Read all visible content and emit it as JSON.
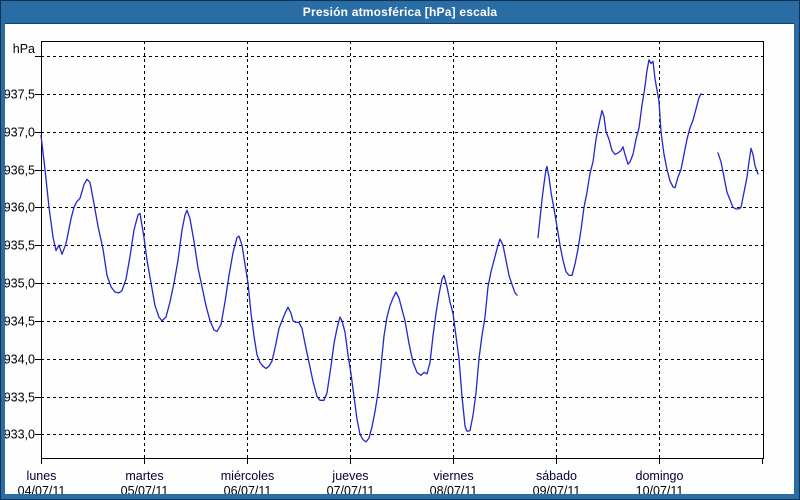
{
  "window": {
    "title": "Presión atmosférica [hPa] escala"
  },
  "chart": {
    "y_axis_unit": "hPa",
    "colors": {
      "titlebar": "#2a6da5",
      "frame": "#2a6da5",
      "line": "#2427c9",
      "grid": "#000000",
      "border": "#000000",
      "day_label": "#000033",
      "date_label": "#000000",
      "tick_label": "#000000",
      "title_text": "#ffffff",
      "background": "#fdfefd"
    }
  },
  "chart_data": {
    "type": "line",
    "title": "Presión atmosférica [hPa] escala",
    "ylabel": "hPa",
    "xlabel": "",
    "ylim": [
      932.7,
      938.2
    ],
    "grid": "dashed horizontal and vertical",
    "legend": "none",
    "y_ticks": [
      {
        "value": 938.0,
        "label": ""
      },
      {
        "value": 937.5,
        "label": "937,5"
      },
      {
        "value": 937.0,
        "label": "937,0"
      },
      {
        "value": 936.5,
        "label": "936,5"
      },
      {
        "value": 936.0,
        "label": "936,0"
      },
      {
        "value": 935.5,
        "label": "935,5"
      },
      {
        "value": 935.0,
        "label": "935,0"
      },
      {
        "value": 934.5,
        "label": "934,5"
      },
      {
        "value": 934.0,
        "label": "934,0"
      },
      {
        "value": 933.5,
        "label": "933,5"
      },
      {
        "value": 933.0,
        "label": "933,0"
      }
    ],
    "x_days": [
      {
        "name": "lunes",
        "date": "04/07/11"
      },
      {
        "name": "martes",
        "date": "05/07/11"
      },
      {
        "name": "miércoles",
        "date": "06/07/11"
      },
      {
        "name": "jueves",
        "date": "07/07/11"
      },
      {
        "name": "viernes",
        "date": "08/07/11"
      },
      {
        "name": "sábado",
        "date": "09/07/11"
      },
      {
        "name": "domingo",
        "date": "10/07/11"
      }
    ],
    "x_unit": "days since 04/07/11 00:00",
    "x_span_days": 7,
    "series": [
      {
        "name": "Presión atmosférica [hPa]",
        "segments": [
          [
            [
              0.0,
              936.95
            ],
            [
              0.039,
              936.5
            ],
            [
              0.078,
              936.0
            ],
            [
              0.117,
              935.6
            ],
            [
              0.146,
              935.43
            ],
            [
              0.175,
              935.5
            ],
            [
              0.204,
              935.38
            ],
            [
              0.243,
              935.52
            ],
            [
              0.291,
              935.85
            ],
            [
              0.32,
              936.0
            ],
            [
              0.35,
              936.08
            ],
            [
              0.379,
              936.12
            ],
            [
              0.417,
              936.3
            ],
            [
              0.447,
              936.37
            ],
            [
              0.476,
              936.33
            ],
            [
              0.515,
              936.05
            ],
            [
              0.553,
              935.75
            ],
            [
              0.602,
              935.45
            ],
            [
              0.641,
              935.1
            ],
            [
              0.68,
              934.95
            ],
            [
              0.718,
              934.88
            ],
            [
              0.757,
              934.87
            ],
            [
              0.786,
              934.9
            ],
            [
              0.825,
              935.05
            ],
            [
              0.864,
              935.35
            ],
            [
              0.903,
              935.7
            ],
            [
              0.942,
              935.9
            ],
            [
              0.961,
              935.92
            ],
            [
              1.0,
              935.6
            ],
            [
              1.029,
              935.3
            ],
            [
              1.068,
              935.0
            ],
            [
              1.107,
              934.7
            ],
            [
              1.146,
              934.55
            ],
            [
              1.175,
              934.5
            ],
            [
              1.214,
              934.55
            ],
            [
              1.252,
              934.75
            ],
            [
              1.291,
              935.0
            ],
            [
              1.33,
              935.3
            ],
            [
              1.369,
              935.7
            ],
            [
              1.398,
              935.9
            ],
            [
              1.417,
              935.96
            ],
            [
              1.447,
              935.85
            ],
            [
              1.485,
              935.55
            ],
            [
              1.524,
              935.2
            ],
            [
              1.563,
              934.95
            ],
            [
              1.602,
              934.7
            ],
            [
              1.641,
              934.5
            ],
            [
              1.68,
              934.38
            ],
            [
              1.709,
              934.36
            ],
            [
              1.748,
              934.45
            ],
            [
              1.786,
              934.75
            ],
            [
              1.825,
              935.1
            ],
            [
              1.864,
              935.4
            ],
            [
              1.903,
              935.6
            ],
            [
              1.922,
              935.62
            ],
            [
              1.951,
              935.5
            ],
            [
              1.981,
              935.25
            ],
            [
              2.01,
              935.0
            ],
            [
              2.039,
              934.6
            ],
            [
              2.068,
              934.3
            ],
            [
              2.097,
              934.05
            ],
            [
              2.126,
              933.95
            ],
            [
              2.155,
              933.9
            ],
            [
              2.184,
              933.87
            ],
            [
              2.214,
              933.9
            ],
            [
              2.243,
              933.97
            ],
            [
              2.282,
              934.2
            ],
            [
              2.311,
              934.4
            ],
            [
              2.34,
              934.5
            ],
            [
              2.369,
              934.6
            ],
            [
              2.398,
              934.68
            ],
            [
              2.427,
              934.6
            ],
            [
              2.447,
              934.5
            ],
            [
              2.476,
              934.48
            ],
            [
              2.505,
              934.48
            ],
            [
              2.534,
              934.4
            ],
            [
              2.563,
              934.2
            ],
            [
              2.602,
              933.95
            ],
            [
              2.641,
              933.7
            ],
            [
              2.68,
              933.5
            ],
            [
              2.709,
              933.45
            ],
            [
              2.748,
              933.45
            ],
            [
              2.777,
              933.55
            ],
            [
              2.816,
              933.9
            ],
            [
              2.845,
              934.2
            ],
            [
              2.874,
              934.4
            ],
            [
              2.903,
              934.55
            ],
            [
              2.922,
              934.5
            ],
            [
              2.951,
              934.35
            ],
            [
              2.981,
              934.05
            ],
            [
              3.01,
              933.8
            ],
            [
              3.039,
              933.5
            ],
            [
              3.068,
              933.2
            ],
            [
              3.097,
              933.0
            ],
            [
              3.126,
              932.93
            ],
            [
              3.155,
              932.9
            ],
            [
              3.184,
              932.95
            ],
            [
              3.214,
              933.1
            ],
            [
              3.243,
              933.3
            ],
            [
              3.272,
              933.55
            ],
            [
              3.301,
              933.9
            ],
            [
              3.33,
              934.3
            ],
            [
              3.359,
              934.55
            ],
            [
              3.388,
              934.7
            ],
            [
              3.417,
              934.8
            ],
            [
              3.447,
              934.88
            ],
            [
              3.476,
              934.8
            ],
            [
              3.505,
              934.65
            ],
            [
              3.534,
              934.5
            ],
            [
              3.573,
              934.2
            ],
            [
              3.612,
              933.95
            ],
            [
              3.65,
              933.82
            ],
            [
              3.689,
              933.78
            ],
            [
              3.718,
              933.82
            ],
            [
              3.748,
              933.8
            ],
            [
              3.777,
              933.95
            ],
            [
              3.806,
              934.3
            ],
            [
              3.835,
              934.6
            ],
            [
              3.864,
              934.85
            ],
            [
              3.893,
              935.05
            ],
            [
              3.913,
              935.1
            ],
            [
              3.942,
              934.95
            ],
            [
              3.971,
              934.75
            ],
            [
              4.0,
              934.6
            ],
            [
              4.029,
              934.3
            ],
            [
              4.058,
              934.0
            ],
            [
              4.087,
              933.5
            ],
            [
              4.117,
              933.1
            ],
            [
              4.136,
              933.04
            ],
            [
              4.165,
              933.05
            ],
            [
              4.194,
              933.25
            ],
            [
              4.223,
              933.55
            ],
            [
              4.252,
              934.0
            ],
            [
              4.281,
              934.3
            ],
            [
              4.311,
              934.55
            ],
            [
              4.34,
              934.95
            ],
            [
              4.369,
              935.15
            ],
            [
              4.408,
              935.35
            ],
            [
              4.437,
              935.5
            ],
            [
              4.456,
              935.58
            ],
            [
              4.485,
              935.5
            ],
            [
              4.515,
              935.3
            ],
            [
              4.544,
              935.1
            ],
            [
              4.573,
              934.98
            ],
            [
              4.602,
              934.87
            ],
            [
              4.621,
              934.84
            ]
          ],
          [
            [
              4.825,
              935.6
            ],
            [
              4.845,
              935.85
            ],
            [
              4.864,
              936.1
            ],
            [
              4.883,
              936.3
            ],
            [
              4.903,
              936.5
            ],
            [
              4.913,
              936.54
            ],
            [
              4.932,
              936.4
            ],
            [
              4.951,
              936.2
            ],
            [
              4.981,
              935.98
            ],
            [
              5.01,
              935.75
            ],
            [
              5.039,
              935.5
            ],
            [
              5.068,
              935.3
            ],
            [
              5.097,
              935.15
            ],
            [
              5.126,
              935.1
            ],
            [
              5.155,
              935.1
            ],
            [
              5.184,
              935.25
            ],
            [
              5.214,
              935.45
            ],
            [
              5.243,
              935.7
            ],
            [
              5.272,
              936.0
            ],
            [
              5.301,
              936.2
            ],
            [
              5.33,
              936.45
            ],
            [
              5.359,
              936.6
            ],
            [
              5.388,
              936.9
            ],
            [
              5.417,
              937.1
            ],
            [
              5.447,
              937.28
            ],
            [
              5.466,
              937.2
            ],
            [
              5.485,
              937.0
            ],
            [
              5.515,
              936.9
            ],
            [
              5.544,
              936.75
            ],
            [
              5.573,
              936.7
            ],
            [
              5.602,
              936.72
            ],
            [
              5.631,
              936.75
            ],
            [
              5.65,
              936.8
            ],
            [
              5.67,
              936.7
            ],
            [
              5.699,
              936.57
            ],
            [
              5.718,
              936.6
            ],
            [
              5.748,
              936.7
            ],
            [
              5.777,
              936.9
            ],
            [
              5.806,
              937.05
            ],
            [
              5.835,
              937.35
            ],
            [
              5.864,
              937.6
            ],
            [
              5.883,
              937.8
            ],
            [
              5.903,
              937.95
            ],
            [
              5.922,
              937.9
            ],
            [
              5.942,
              937.93
            ],
            [
              5.961,
              937.7
            ],
            [
              5.981,
              937.55
            ],
            [
              6.0,
              937.4
            ],
            [
              6.019,
              937.0
            ],
            [
              6.049,
              936.7
            ],
            [
              6.078,
              936.5
            ],
            [
              6.107,
              936.35
            ],
            [
              6.136,
              936.27
            ],
            [
              6.155,
              936.26
            ],
            [
              6.184,
              936.4
            ],
            [
              6.214,
              936.5
            ],
            [
              6.243,
              936.7
            ],
            [
              6.272,
              936.9
            ],
            [
              6.301,
              937.05
            ],
            [
              6.33,
              937.15
            ],
            [
              6.359,
              937.3
            ],
            [
              6.388,
              937.45
            ],
            [
              6.408,
              937.5
            ]
          ],
          [
            [
              6.573,
              936.72
            ],
            [
              6.602,
              936.6
            ],
            [
              6.631,
              936.4
            ],
            [
              6.66,
              936.2
            ],
            [
              6.689,
              936.1
            ],
            [
              6.718,
              936.0
            ],
            [
              6.748,
              935.98
            ],
            [
              6.777,
              935.98
            ],
            [
              6.796,
              936.0
            ],
            [
              6.825,
              936.2
            ],
            [
              6.854,
              936.4
            ],
            [
              6.874,
              936.6
            ],
            [
              6.893,
              936.78
            ],
            [
              6.913,
              936.7
            ],
            [
              6.932,
              936.55
            ],
            [
              6.961,
              936.44
            ]
          ]
        ]
      }
    ]
  }
}
